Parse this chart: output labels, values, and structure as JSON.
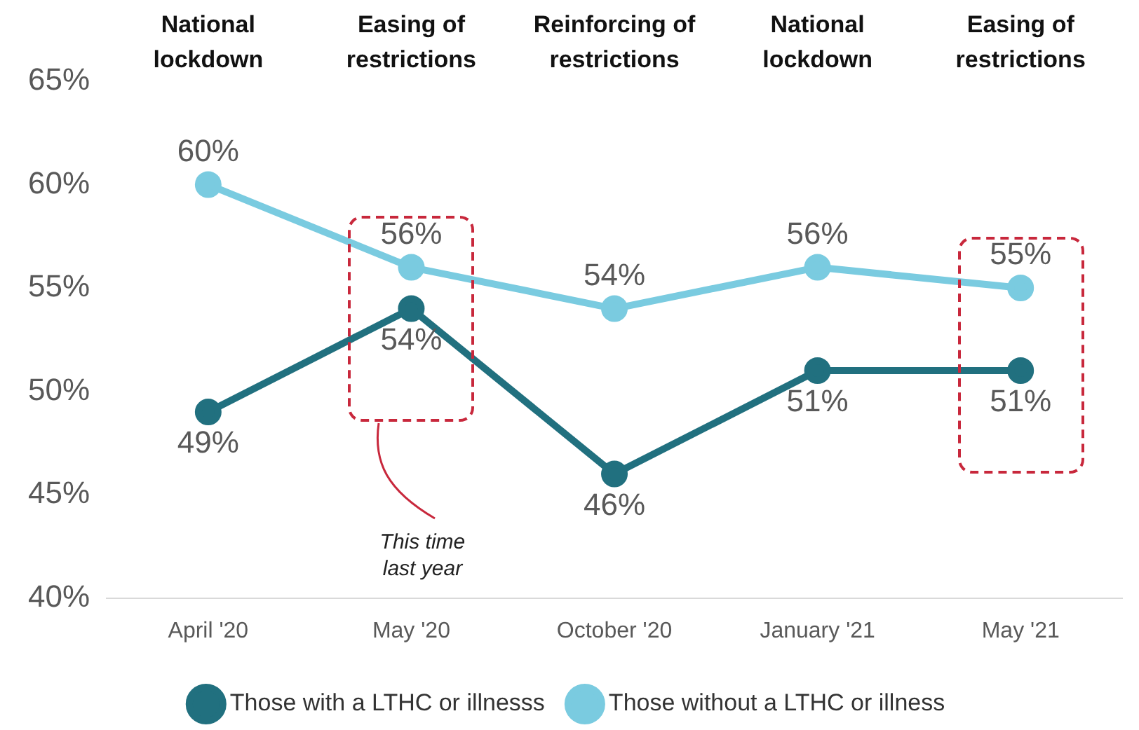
{
  "chart_data": {
    "type": "line",
    "categories": [
      "April '20",
      "May '20",
      "October '20",
      "January '21",
      "May '21"
    ],
    "series": [
      {
        "name": "Those with a LTHC or illnesss",
        "color": "#21707f",
        "values": [
          49,
          54,
          46,
          51,
          51
        ],
        "value_labels": [
          "49%",
          "54%",
          "46%",
          "51%",
          "51%"
        ]
      },
      {
        "name": "Those without a LTHC or illness",
        "color": "#7acbe0",
        "values": [
          60,
          56,
          54,
          56,
          55
        ],
        "value_labels": [
          "60%",
          "56%",
          "54%",
          "56%",
          "55%"
        ]
      }
    ],
    "ylim": [
      40,
      65
    ],
    "yticks": [
      {
        "value": 40,
        "label": "40%"
      },
      {
        "value": 45,
        "label": "45%"
      },
      {
        "value": 50,
        "label": "50%"
      },
      {
        "value": 55,
        "label": "55%"
      },
      {
        "value": 60,
        "label": "60%"
      },
      {
        "value": 65,
        "label": "65%"
      }
    ],
    "grid": false,
    "legend": "bottom",
    "marker": "circle",
    "line_style": "solid",
    "annotations": [
      "National lockdown",
      "Easing of restrictions",
      "Reinforcing of restrictions",
      "National lockdown",
      "Easing of restrictions",
      "This time last year"
    ]
  }
}
